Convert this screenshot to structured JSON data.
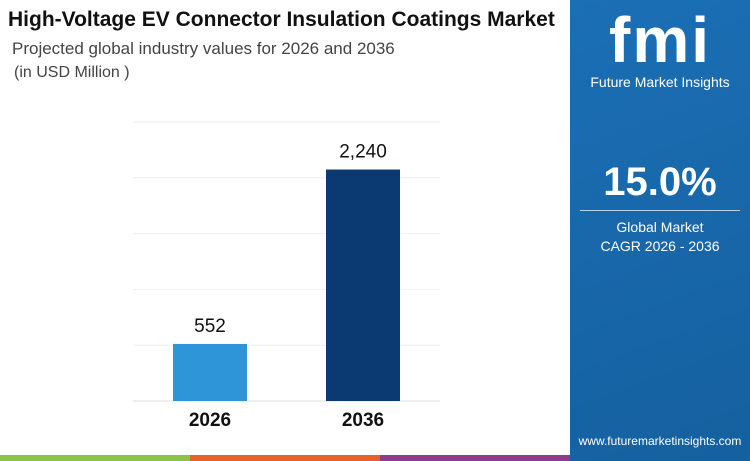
{
  "header": {
    "title": "High-Voltage EV Connector Insulation Coatings Market",
    "subtitle": "Projected global industry values for 2026 and 2036",
    "unit": "(in USD Million )"
  },
  "sidebar": {
    "logo_text": "fmi",
    "brand": "Future Market Insights",
    "cagr": "15.0%",
    "cagr_label_1": "Global Market",
    "cagr_label_2": "CAGR 2026 - 2036",
    "website": "www.futuremarketinsights.com",
    "bg_color": "#1a6aad"
  },
  "footer_colors": [
    "#8bc34a",
    "#e8602c",
    "#8e3a8f"
  ],
  "chart_data": {
    "type": "bar",
    "categories": [
      "2026",
      "2036"
    ],
    "values": [
      552,
      2240
    ],
    "data_labels": [
      "552",
      "2,240"
    ],
    "colors": [
      "#2e95d8",
      "#0b3a73"
    ],
    "ylim": [
      0,
      2700
    ],
    "grid": true,
    "title": "",
    "xlabel": "",
    "ylabel": ""
  }
}
